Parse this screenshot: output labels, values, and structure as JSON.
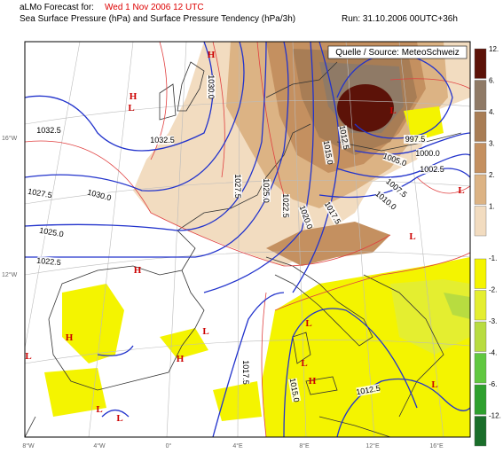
{
  "header": {
    "title_prefix": "aLMo Forecast for:",
    "title_date": "Wed 1 Nov 2006 12 UTC",
    "subtitle": "Sea Surface Pressure (hPa)  and  Surface Pressure Tendency (hPa/3h)",
    "run": "Run: 31.10.2006 00UTC+36h"
  },
  "map": {
    "source": "Quelle / Source: MeteoSchweiz",
    "isobar_labels": [
      "1032.5",
      "1030.0",
      "1032.5",
      "1027.5",
      "1030.0",
      "1025.0",
      "1022.5",
      "1027.5",
      "1025.0",
      "1022.5",
      "1020.0",
      "1017.5",
      "1015.0",
      "1012.5",
      "997.5",
      "1000.0",
      "1002.5",
      "1005.0",
      "1007.5",
      "1010.0",
      "1017.5",
      "1015.0",
      "1012.5"
    ],
    "pressure_centers": [
      "H",
      "L",
      "H",
      "H",
      "L",
      "L",
      "H",
      "L",
      "L",
      "H",
      "L",
      "L",
      "L",
      "H",
      "L",
      "L",
      "L"
    ],
    "longitude_labels": [
      "8°W",
      "4°W",
      "0°",
      "4°E",
      "8°E",
      "12°E",
      "16°E"
    ],
    "latitude_labels": [
      "16°W",
      "12°W"
    ]
  },
  "legend": [
    {
      "label": "12.",
      "color": "#5c1208"
    },
    {
      "label": "6.",
      "color": "#8f7a66"
    },
    {
      "label": "4.",
      "color": "#a87d55"
    },
    {
      "label": "3.",
      "color": "#c49060"
    },
    {
      "label": "2.",
      "color": "#dcb384"
    },
    {
      "label": "1.",
      "color": "#f2dcc0"
    },
    {
      "label": "-1.",
      "color": "#f4f400"
    },
    {
      "label": "-2.",
      "color": "#e4ee30"
    },
    {
      "label": "-3.",
      "color": "#b8dc40"
    },
    {
      "label": "-4.",
      "color": "#60c840"
    },
    {
      "label": "-6.",
      "color": "#2ea02e"
    },
    {
      "label": "-12.",
      "color": "#1a6e2a"
    }
  ]
}
